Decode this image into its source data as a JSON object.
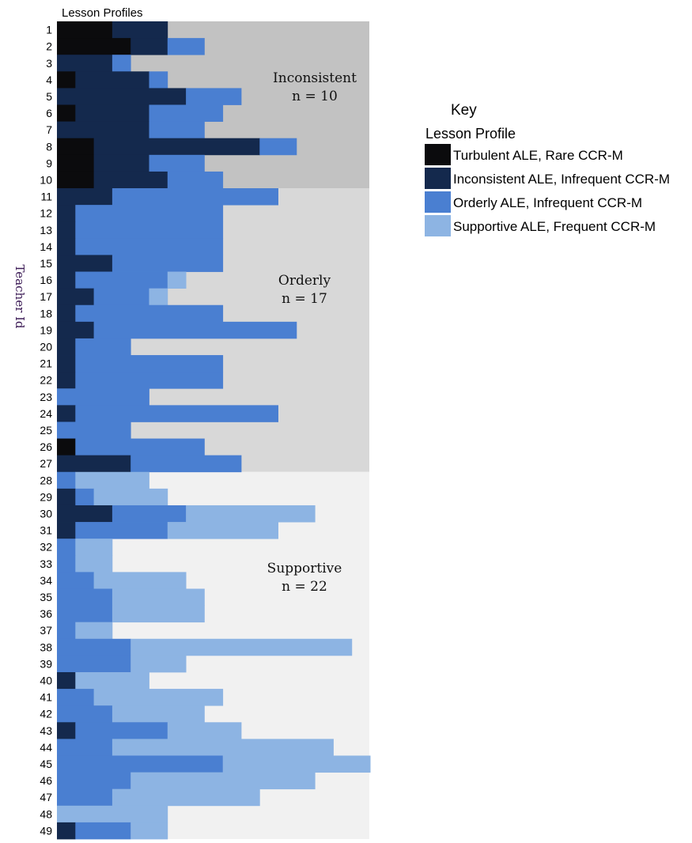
{
  "chart_data": {
    "type": "heatmap",
    "title": "Lesson Profiles",
    "ylabel": "Teacher Id",
    "colors": {
      "Turbulent": "#0b0b0d",
      "Inconsistent": "#14294d",
      "Orderly": "#4a7fd1",
      "Supportive": "#8db4e3"
    },
    "group_colors": [
      "#c2c2c2",
      "#d8d8d8",
      "#f1f1f1"
    ],
    "groups": [
      {
        "name": "Inconsistent",
        "count_label": "n = 10",
        "teachers": [
          1,
          10
        ]
      },
      {
        "name": "Orderly",
        "count_label": "n = 17",
        "teachers": [
          11,
          27
        ]
      },
      {
        "name": "Supportive",
        "count_label": "n = 22",
        "teachers": [
          28,
          49
        ]
      }
    ],
    "legend": {
      "title": "Key",
      "subtitle": "Lesson Profile",
      "placement": "right",
      "items": [
        {
          "key": "Turbulent",
          "label": "Turbulent ALE, Rare CCR-M"
        },
        {
          "key": "Inconsistent",
          "label": "Inconsistent ALE, Infrequent CCR-M"
        },
        {
          "key": "Orderly",
          "label": "Orderly ALE, Infrequent CCR-M"
        },
        {
          "key": "Supportive",
          "label": "Supportive ALE, Frequent CCR-M"
        }
      ]
    },
    "series_order": [
      "Turbulent",
      "Inconsistent",
      "Orderly",
      "Supportive"
    ],
    "rows": [
      {
        "teacher": 1,
        "Turbulent": 3,
        "Inconsistent": 3,
        "Orderly": 0,
        "Supportive": 0
      },
      {
        "teacher": 2,
        "Turbulent": 4,
        "Inconsistent": 2,
        "Orderly": 2,
        "Supportive": 0
      },
      {
        "teacher": 3,
        "Turbulent": 0,
        "Inconsistent": 3,
        "Orderly": 1,
        "Supportive": 0
      },
      {
        "teacher": 4,
        "Turbulent": 1,
        "Inconsistent": 4,
        "Orderly": 1,
        "Supportive": 0
      },
      {
        "teacher": 5,
        "Turbulent": 0,
        "Inconsistent": 7,
        "Orderly": 3,
        "Supportive": 0
      },
      {
        "teacher": 6,
        "Turbulent": 1,
        "Inconsistent": 4,
        "Orderly": 4,
        "Supportive": 0
      },
      {
        "teacher": 7,
        "Turbulent": 0,
        "Inconsistent": 5,
        "Orderly": 3,
        "Supportive": 0
      },
      {
        "teacher": 8,
        "Turbulent": 2,
        "Inconsistent": 9,
        "Orderly": 2,
        "Supportive": 0
      },
      {
        "teacher": 9,
        "Turbulent": 2,
        "Inconsistent": 3,
        "Orderly": 3,
        "Supportive": 0
      },
      {
        "teacher": 10,
        "Turbulent": 2,
        "Inconsistent": 4,
        "Orderly": 3,
        "Supportive": 0
      },
      {
        "teacher": 11,
        "Turbulent": 0,
        "Inconsistent": 3,
        "Orderly": 9,
        "Supportive": 0
      },
      {
        "teacher": 12,
        "Turbulent": 0,
        "Inconsistent": 1,
        "Orderly": 8,
        "Supportive": 0
      },
      {
        "teacher": 13,
        "Turbulent": 0,
        "Inconsistent": 1,
        "Orderly": 8,
        "Supportive": 0
      },
      {
        "teacher": 14,
        "Turbulent": 0,
        "Inconsistent": 1,
        "Orderly": 8,
        "Supportive": 0
      },
      {
        "teacher": 15,
        "Turbulent": 0,
        "Inconsistent": 3,
        "Orderly": 6,
        "Supportive": 0
      },
      {
        "teacher": 16,
        "Turbulent": 0,
        "Inconsistent": 1,
        "Orderly": 5,
        "Supportive": 1
      },
      {
        "teacher": 17,
        "Turbulent": 0,
        "Inconsistent": 2,
        "Orderly": 3,
        "Supportive": 1
      },
      {
        "teacher": 18,
        "Turbulent": 0,
        "Inconsistent": 1,
        "Orderly": 8,
        "Supportive": 0
      },
      {
        "teacher": 19,
        "Turbulent": 0,
        "Inconsistent": 2,
        "Orderly": 11,
        "Supportive": 0
      },
      {
        "teacher": 20,
        "Turbulent": 0,
        "Inconsistent": 1,
        "Orderly": 3,
        "Supportive": 0
      },
      {
        "teacher": 21,
        "Turbulent": 0,
        "Inconsistent": 1,
        "Orderly": 8,
        "Supportive": 0
      },
      {
        "teacher": 22,
        "Turbulent": 0,
        "Inconsistent": 1,
        "Orderly": 8,
        "Supportive": 0
      },
      {
        "teacher": 23,
        "Turbulent": 0,
        "Inconsistent": 0,
        "Orderly": 5,
        "Supportive": 0
      },
      {
        "teacher": 24,
        "Turbulent": 0,
        "Inconsistent": 1,
        "Orderly": 11,
        "Supportive": 0
      },
      {
        "teacher": 25,
        "Turbulent": 0,
        "Inconsistent": 0,
        "Orderly": 4,
        "Supportive": 0
      },
      {
        "teacher": 26,
        "Turbulent": 1,
        "Inconsistent": 0,
        "Orderly": 7,
        "Supportive": 0
      },
      {
        "teacher": 27,
        "Turbulent": 0,
        "Inconsistent": 4,
        "Orderly": 6,
        "Supportive": 0
      },
      {
        "teacher": 28,
        "Turbulent": 0,
        "Inconsistent": 0,
        "Orderly": 1,
        "Supportive": 4
      },
      {
        "teacher": 29,
        "Turbulent": 0,
        "Inconsistent": 1,
        "Orderly": 1,
        "Supportive": 4
      },
      {
        "teacher": 30,
        "Turbulent": 0,
        "Inconsistent": 3,
        "Orderly": 4,
        "Supportive": 7
      },
      {
        "teacher": 31,
        "Turbulent": 0,
        "Inconsistent": 1,
        "Orderly": 5,
        "Supportive": 6
      },
      {
        "teacher": 32,
        "Turbulent": 0,
        "Inconsistent": 0,
        "Orderly": 1,
        "Supportive": 2
      },
      {
        "teacher": 33,
        "Turbulent": 0,
        "Inconsistent": 0,
        "Orderly": 1,
        "Supportive": 2
      },
      {
        "teacher": 34,
        "Turbulent": 0,
        "Inconsistent": 0,
        "Orderly": 2,
        "Supportive": 5
      },
      {
        "teacher": 35,
        "Turbulent": 0,
        "Inconsistent": 0,
        "Orderly": 3,
        "Supportive": 5
      },
      {
        "teacher": 36,
        "Turbulent": 0,
        "Inconsistent": 0,
        "Orderly": 3,
        "Supportive": 5
      },
      {
        "teacher": 37,
        "Turbulent": 0,
        "Inconsistent": 0,
        "Orderly": 1,
        "Supportive": 2
      },
      {
        "teacher": 38,
        "Turbulent": 0,
        "Inconsistent": 0,
        "Orderly": 4,
        "Supportive": 12
      },
      {
        "teacher": 39,
        "Turbulent": 0,
        "Inconsistent": 0,
        "Orderly": 4,
        "Supportive": 3
      },
      {
        "teacher": 40,
        "Turbulent": 0,
        "Inconsistent": 1,
        "Orderly": 0,
        "Supportive": 4
      },
      {
        "teacher": 41,
        "Turbulent": 0,
        "Inconsistent": 0,
        "Orderly": 2,
        "Supportive": 7
      },
      {
        "teacher": 42,
        "Turbulent": 0,
        "Inconsistent": 0,
        "Orderly": 3,
        "Supportive": 5
      },
      {
        "teacher": 43,
        "Turbulent": 0,
        "Inconsistent": 1,
        "Orderly": 5,
        "Supportive": 4
      },
      {
        "teacher": 44,
        "Turbulent": 0,
        "Inconsistent": 0,
        "Orderly": 3,
        "Supportive": 12
      },
      {
        "teacher": 45,
        "Turbulent": 0,
        "Inconsistent": 0,
        "Orderly": 9,
        "Supportive": 8
      },
      {
        "teacher": 46,
        "Turbulent": 0,
        "Inconsistent": 0,
        "Orderly": 4,
        "Supportive": 10
      },
      {
        "teacher": 47,
        "Turbulent": 0,
        "Inconsistent": 0,
        "Orderly": 3,
        "Supportive": 8
      },
      {
        "teacher": 48,
        "Turbulent": 0,
        "Inconsistent": 0,
        "Orderly": 0,
        "Supportive": 6
      },
      {
        "teacher": 49,
        "Turbulent": 0,
        "Inconsistent": 1,
        "Orderly": 3,
        "Supportive": 2
      }
    ]
  }
}
